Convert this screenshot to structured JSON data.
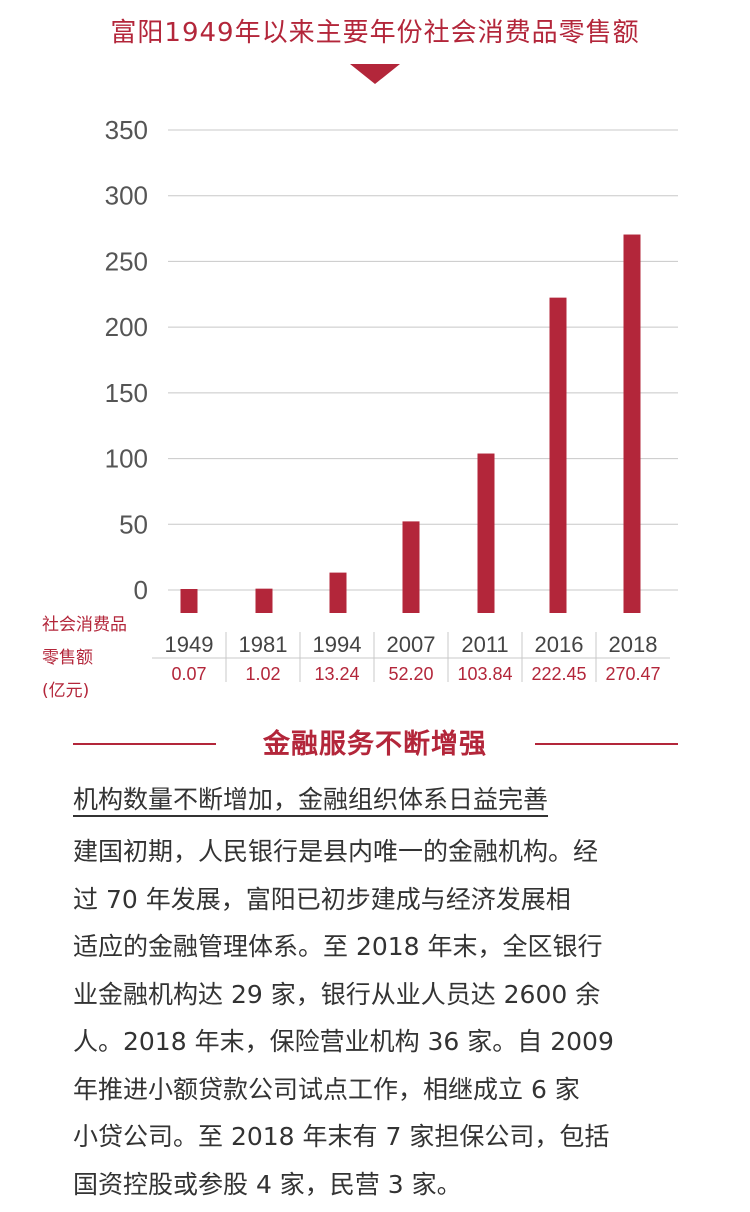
{
  "chart_title": "富阳1949年以来主要年份社会消费品零售额",
  "y_axis_label_lines": [
    "社会消费品",
    "零售额",
    "(亿元)"
  ],
  "colors": {
    "accent": "#b3263a",
    "text": "#333333",
    "grid": "#c8c8c8"
  },
  "chart_data": {
    "type": "bar",
    "title": "富阳1949年以来主要年份社会消费品零售额",
    "ylabel": "社会消费品零售额(亿元)",
    "categories": [
      "1949",
      "1981",
      "1994",
      "2007",
      "2011",
      "2016",
      "2018"
    ],
    "values": [
      0.07,
      1.02,
      13.24,
      52.2,
      103.84,
      222.45,
      270.47
    ],
    "value_labels": [
      "0.07",
      "1.02",
      "13.24",
      "52.20",
      "103.84",
      "222.45",
      "270.47"
    ],
    "y_ticks": [
      "0",
      "50",
      "100",
      "150",
      "200",
      "250",
      "300",
      "350"
    ],
    "ylim": [
      0,
      350
    ],
    "grid": true,
    "bar_color": "#b3263a"
  },
  "section": {
    "title": "金融服务不断增强",
    "subheading": "机构数量不断增加，金融组织体系日益完善",
    "body_lines": [
      "建国初期，人民银行是县内唯一的金融机构。经",
      "过 70 年发展，富阳已初步建成与经济发展相",
      "适应的金融管理体系。至 2018 年末，全区银行",
      "业金融机构达 29 家，银行从业人员达 2600 余",
      "人。2018 年末，保险营业机构 36 家。自 2009",
      "年推进小额贷款公司试点工作，相继成立 6 家",
      "小贷公司。至 2018 年末有 7 家担保公司，包括",
      "国资控股或参股 4 家，民营 3 家。"
    ]
  }
}
